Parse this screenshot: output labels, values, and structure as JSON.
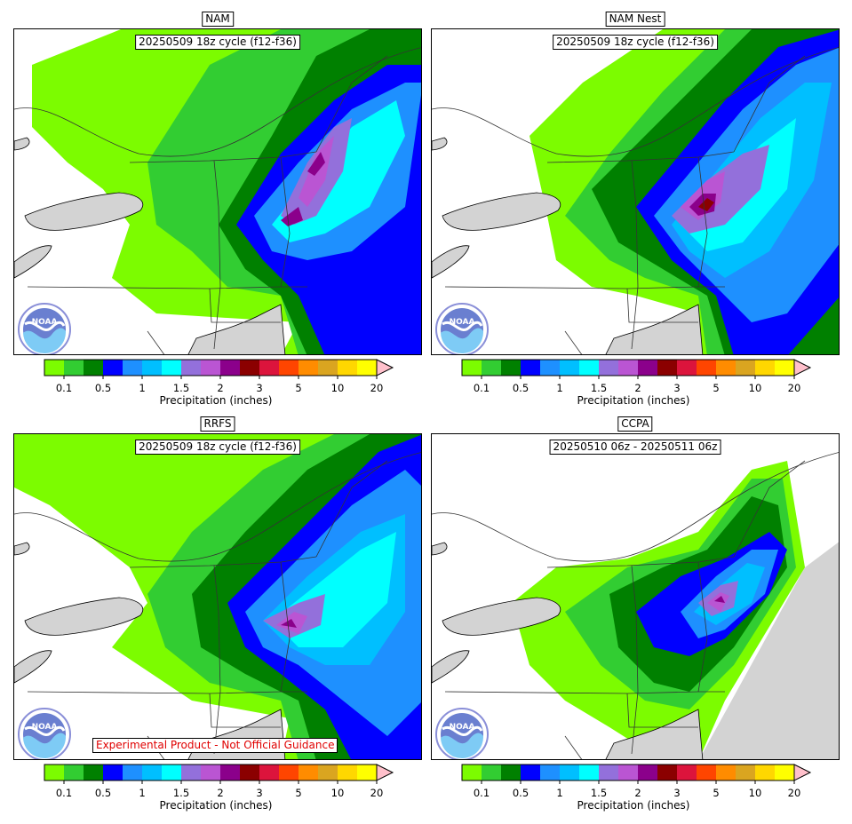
{
  "panels": [
    {
      "id": "nam",
      "title": "NAM",
      "cycle": "20250509 18z cycle (f12-f36)"
    },
    {
      "id": "namnest",
      "title": "NAM Nest",
      "cycle": "20250509 18z cycle (f12-f36)"
    },
    {
      "id": "rrfs",
      "title": "RRFS",
      "cycle": "20250509 18z cycle (f12-f36)",
      "disclaimer": "Experimental Product - Not Official Guidance"
    },
    {
      "id": "ccpa",
      "title": "CCPA",
      "cycle": "20250510 06z - 20250511 06z"
    }
  ],
  "colorbar": {
    "label": "Precipitation (inches)",
    "ticks": [
      "0.1",
      "0.5",
      "1",
      "1.5",
      "2",
      "3",
      "5",
      "10",
      "20"
    ],
    "colors": [
      "#7cfc00",
      "#32cd32",
      "#008000",
      "#0000ff",
      "#1e90ff",
      "#00bfff",
      "#00ffff",
      "#9370db",
      "#ba55d3",
      "#8b008b",
      "#8b0000",
      "#dc143c",
      "#ff4500",
      "#ff8c00",
      "#daa520",
      "#ffd700",
      "#ffff00"
    ],
    "extend_color": "#ffc0cb"
  },
  "logo": "noaa-logo"
}
